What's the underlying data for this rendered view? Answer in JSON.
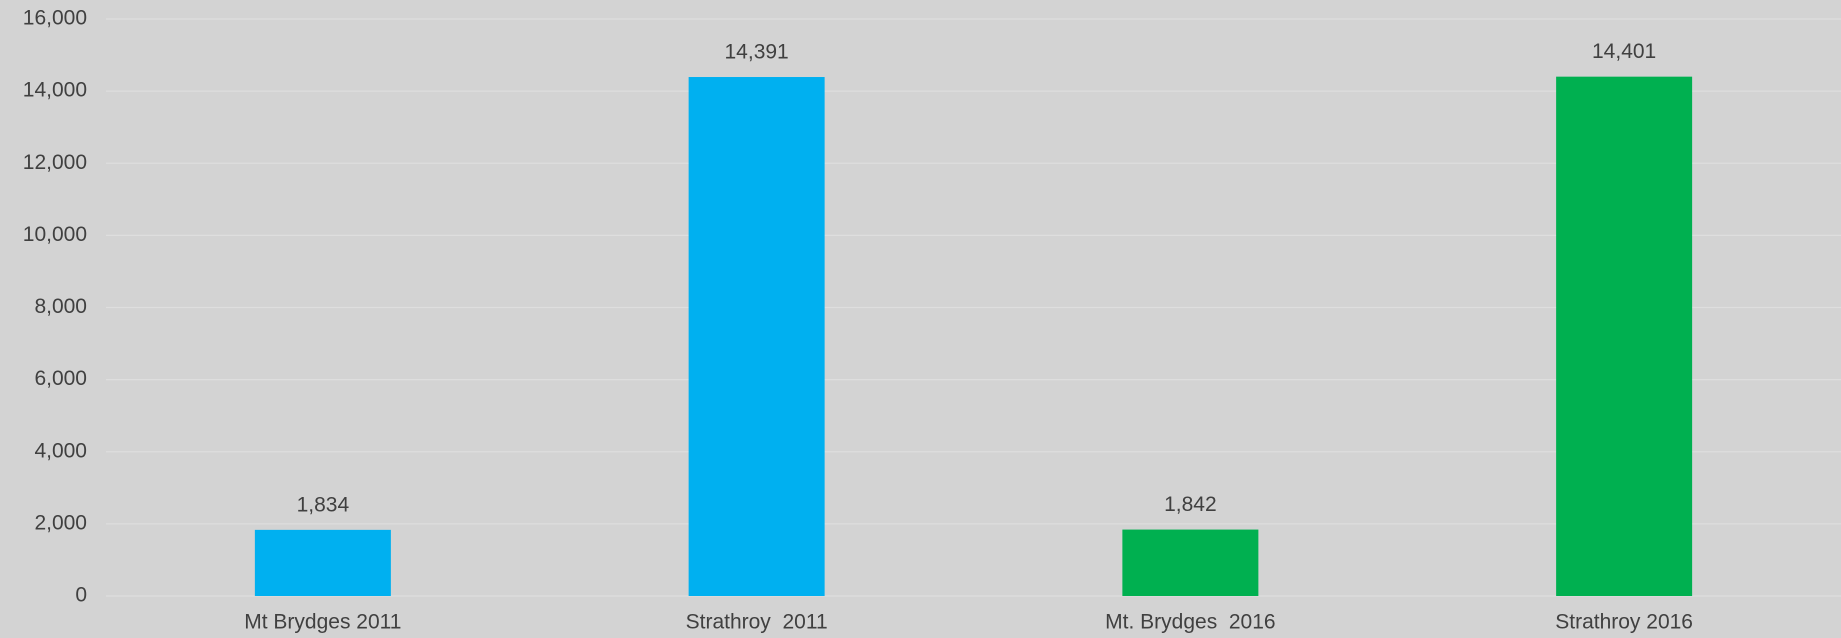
{
  "chart_data": {
    "type": "bar",
    "categories": [
      "Mt Brydges 2011",
      "Strathroy  2011",
      "Mt. Brydges  2016",
      "Strathroy 2016"
    ],
    "values": [
      1834,
      14391,
      1842,
      14401
    ],
    "value_labels": [
      "1,834",
      "14,391",
      "1,842",
      "14,401"
    ],
    "colors": [
      "#00b0f0",
      "#00b0f0",
      "#00b050",
      "#00b050"
    ],
    "ylim": [
      0,
      16000
    ],
    "yticks": [
      0,
      {
        "value": 2000,
        "label": "2,000"
      },
      {
        "value": 4000,
        "label": "4,000"
      },
      {
        "value": 6000,
        "label": "6,000"
      },
      {
        "value": 8000,
        "label": "8,000"
      },
      {
        "value": 10000,
        "label": "10,000"
      },
      {
        "value": 12000,
        "label": "12,000"
      },
      {
        "value": 14000,
        "label": "14,000"
      },
      {
        "value": 16000,
        "label": "16,000"
      }
    ],
    "grid": true
  }
}
